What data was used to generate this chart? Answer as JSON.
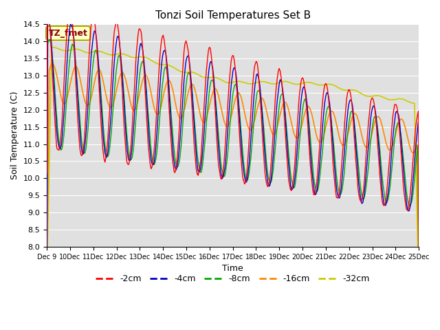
{
  "title": "Tonzi Soil Temperatures Set B",
  "xlabel": "Time",
  "ylabel": "Soil Temperature (C)",
  "ylim": [
    8.0,
    14.5
  ],
  "yticks": [
    8.0,
    8.5,
    9.0,
    9.5,
    10.0,
    10.5,
    11.0,
    11.5,
    12.0,
    12.5,
    13.0,
    13.5,
    14.0,
    14.5
  ],
  "colors": {
    "-2cm": "#ff0000",
    "-4cm": "#0000cc",
    "-8cm": "#00aa00",
    "-16cm": "#ff8800",
    "-32cm": "#cccc00"
  },
  "legend_label": "TZ_fmet",
  "legend_box_color": "#ffffcc",
  "legend_text_color": "#880000",
  "background_color": "#e0e0e0",
  "grid_color": "#ffffff",
  "fig_bg": "#ffffff"
}
